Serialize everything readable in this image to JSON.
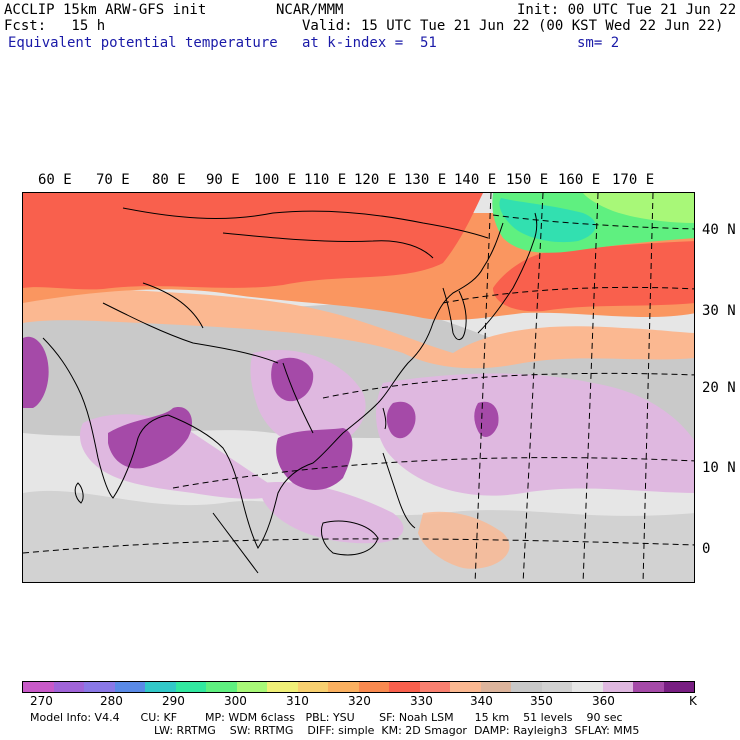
{
  "header": {
    "left_line1": "ACCLIP 15km ARW-GFS init",
    "left_line2": "Fcst:   15 h",
    "field_name": "Equivalent potential temperature",
    "center_line1": "NCAR/MMM",
    "valid_line": "Valid: 15 UTC Tue 21 Jun 22 (00 KST Wed 22 Jun 22)",
    "level_line": "at k-index =  51",
    "init_line": "Init: 00 UTC Tue 21 Jun 22",
    "smooth_line": "sm= 2"
  },
  "map": {
    "lon_labels": [
      "60 E",
      "70 E",
      "80 E",
      "90 E",
      "100 E",
      "110 E",
      "120 E",
      "130 E",
      "140 E",
      "150 E",
      "160 E",
      "170 E"
    ],
    "lat_labels": [
      "40 N",
      "30 N",
      "20 N",
      "10 N",
      "0"
    ],
    "colors": {
      "warm_red": "#f9604d",
      "orange": "#fa9660",
      "salmon": "#fbb891",
      "gray": "#c9c9c9",
      "light_gray": "#e6e6e6",
      "lavender": "#dfb8e0",
      "violet": "#a54aa8",
      "green": "#5ff080",
      "aqua": "#32e0b0",
      "coast": "#000000"
    }
  },
  "colorbar": {
    "colors": [
      "#c85ac8",
      "#a064d8",
      "#8a78e6",
      "#5a8ae6",
      "#32c8c8",
      "#32e8a0",
      "#5ff080",
      "#a8f878",
      "#f0f078",
      "#f8d070",
      "#fab060",
      "#f98a50",
      "#f9604d",
      "#f98070",
      "#fbb891",
      "#dcb49c",
      "#c8c8c8",
      "#d2d2d2",
      "#e6e6e6",
      "#dfb8e0",
      "#a54aa8",
      "#781e82"
    ],
    "labels": [
      "270",
      "280",
      "290",
      "300",
      "310",
      "320",
      "330",
      "340",
      "350",
      "360"
    ],
    "unit": "K"
  },
  "footer": {
    "line1": "Model Info: V4.4      CU: KF        MP: WDM 6class   PBL: YSU       SF: Noah LSM      15 km    51 levels    90 sec",
    "line2": "LW: RRTMG    SW: RRTMG    DIFF: simple  KM: 2D Smagor  DAMP: Rayleigh3  SFLAY: MM5"
  }
}
